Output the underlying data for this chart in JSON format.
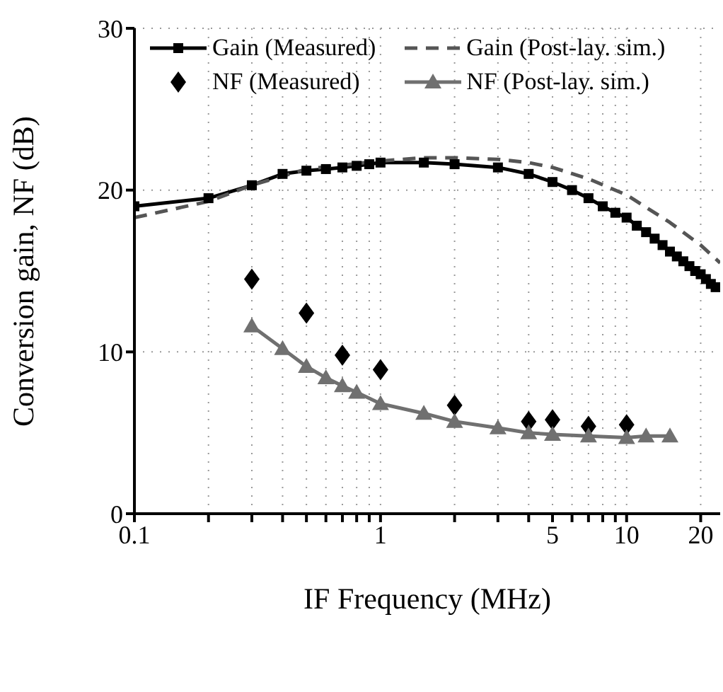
{
  "chart_data": {
    "type": "line",
    "xlabel": "IF Frequency (MHz)",
    "ylabel": "Conversion gain, NF (dB)",
    "log": "x",
    "grid": true,
    "legend": "top left",
    "xlim": [
      0.1,
      24
    ],
    "ylim": [
      0,
      30
    ],
    "xticks": [
      0.1,
      {
        "value": 0.2,
        "label": null
      },
      {
        "value": 0.3,
        "label": null
      },
      {
        "value": 0.4,
        "label": null
      },
      {
        "value": 0.5,
        "label": null
      },
      {
        "value": 0.6,
        "label": null
      },
      {
        "value": 0.7,
        "label": null
      },
      {
        "value": 0.8,
        "label": null
      },
      {
        "value": 0.9,
        "label": null
      },
      1,
      {
        "value": 2,
        "label": null
      },
      {
        "value": 3,
        "label": null
      },
      {
        "value": 4,
        "label": null
      },
      5,
      {
        "value": 6,
        "label": null
      },
      {
        "value": 7,
        "label": null
      },
      {
        "value": 8,
        "label": null
      },
      {
        "value": 9,
        "label": null
      },
      10,
      20
    ],
    "yticks": [
      0,
      10,
      20,
      30
    ],
    "series": [
      {
        "name": "Gain (Measured)",
        "color": "#000000",
        "marker": "square",
        "line_style": "solid",
        "x": [
          0.1,
          0.2,
          0.3,
          0.4,
          0.5,
          0.6,
          0.7,
          0.8,
          0.9,
          1,
          1.5,
          2,
          3,
          4,
          5,
          6,
          7,
          8,
          9,
          10,
          11,
          12,
          13,
          14,
          15,
          16,
          17,
          18,
          19,
          20,
          21,
          22,
          23
        ],
        "values": [
          19.0,
          19.5,
          20.3,
          21.0,
          21.2,
          21.3,
          21.4,
          21.5,
          21.6,
          21.7,
          21.7,
          21.6,
          21.4,
          21.0,
          20.5,
          20.0,
          19.5,
          19.0,
          18.6,
          18.3,
          17.8,
          17.4,
          17.0,
          16.6,
          16.2,
          15.9,
          15.6,
          15.3,
          15.0,
          14.8,
          14.5,
          14.2,
          14.0
        ]
      },
      {
        "name": "Gain (Post-lay. sim.)",
        "color": "#555555",
        "marker": "none",
        "line_style": "dashed",
        "x": [
          0.1,
          0.2,
          0.3,
          0.5,
          1,
          1.5,
          2,
          3,
          4,
          5,
          7,
          10,
          15,
          20,
          24
        ],
        "values": [
          18.3,
          19.3,
          20.3,
          21.3,
          21.8,
          22.0,
          22.0,
          21.9,
          21.7,
          21.4,
          20.7,
          19.7,
          18.0,
          16.6,
          15.5
        ]
      },
      {
        "name": "NF (Measured)",
        "type": "scatter",
        "color": "#000000",
        "marker": "diamond",
        "x": [
          0.3,
          0.5,
          0.7,
          1,
          2,
          4,
          5,
          7,
          10
        ],
        "values": [
          14.5,
          12.4,
          9.8,
          8.9,
          6.7,
          5.7,
          5.8,
          5.4,
          5.5
        ]
      },
      {
        "name": "NF (Post-lay. sim.)",
        "color": "#707070",
        "marker": "triangle",
        "line_style": "solid",
        "x": [
          0.3,
          0.4,
          0.5,
          0.6,
          0.7,
          0.8,
          1,
          1.5,
          2,
          3,
          4,
          5,
          7,
          10,
          12,
          15
        ],
        "values": [
          11.6,
          10.2,
          9.1,
          8.4,
          7.9,
          7.5,
          6.8,
          6.2,
          5.7,
          5.3,
          5.0,
          4.9,
          4.8,
          4.7,
          4.8,
          4.8
        ]
      }
    ]
  }
}
